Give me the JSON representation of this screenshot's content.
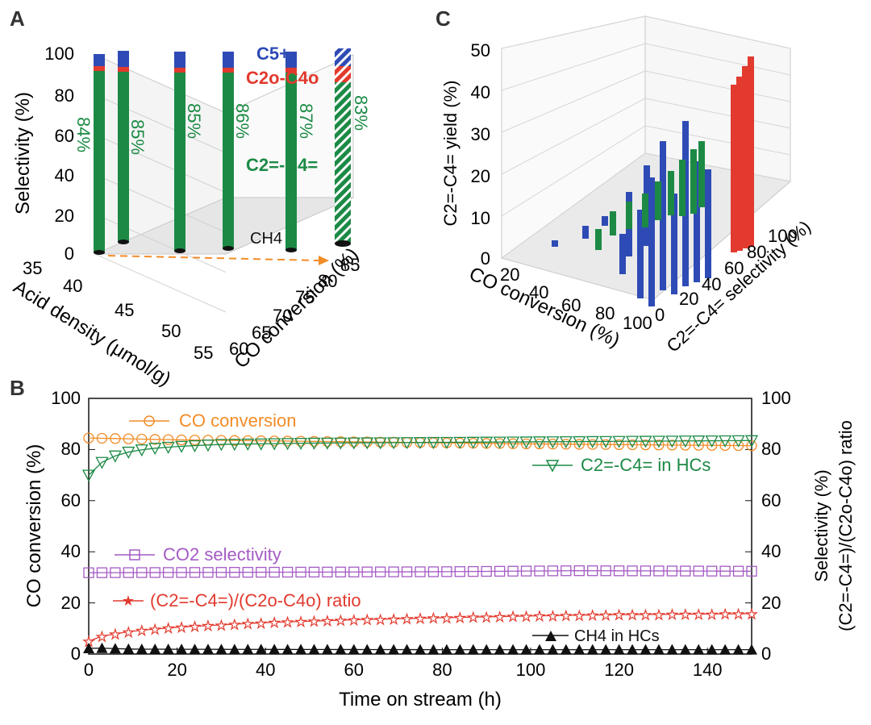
{
  "colors": {
    "green": "#1c8a45",
    "red": "#e23a2e",
    "blue": "#2e4bb5",
    "orange": "#f28c28",
    "purple": "#a45bc4",
    "black": "#111111",
    "grid": "#c8c8c8"
  },
  "panel_labels": {
    "a": "A",
    "b": "B",
    "c": "C"
  },
  "chart_data": [
    {
      "panel": "A",
      "type": "bar",
      "title": "",
      "zlabel": "Selectivity (%)",
      "xlabel": "Acid density (μmol/g)",
      "ylabel": "CO conversion (%)",
      "z_ticks": [
        "0",
        "20",
        "40",
        "60",
        "80",
        "100"
      ],
      "x_ticks": [
        "35",
        "40",
        "45",
        "50",
        "55"
      ],
      "y_ticks": [
        "60",
        "65",
        "70",
        "75",
        "80",
        "85"
      ],
      "zlim": [
        0,
        100
      ],
      "legend": {
        "c5": "C5+",
        "paraffin": "C2o-C4o",
        "olefin": "C2=-C4=",
        "ch4": "CH4"
      },
      "bars": [
        {
          "acid_density": 35,
          "co_conversion": 63,
          "olefin": 84,
          "label": "84%"
        },
        {
          "acid_density": 37,
          "co_conversion": 66,
          "olefin": 85,
          "label": "85%"
        },
        {
          "acid_density": 42,
          "co_conversion": 70,
          "olefin": 85,
          "label": "85%"
        },
        {
          "acid_density": 48,
          "co_conversion": 75,
          "olefin": 86,
          "label": "86%"
        },
        {
          "acid_density": 53,
          "co_conversion": 79,
          "olefin": 87,
          "label": "87%"
        },
        {
          "acid_density": 56,
          "co_conversion": 84,
          "olefin": 83,
          "label": "83%"
        }
      ]
    },
    {
      "panel": "C",
      "type": "bar",
      "title": "",
      "zlabel": "C2=-C4= yield (%)",
      "xlabel": "CO conversion (%)",
      "ylabel": "C2=-C4= selectivity (%)",
      "z_ticks": [
        "0",
        "10",
        "20",
        "30",
        "40",
        "50"
      ],
      "x_ticks": [
        "20",
        "40",
        "60",
        "80",
        "100"
      ],
      "y_ticks": [
        "0",
        "20",
        "40",
        "60",
        "80",
        "100"
      ],
      "zlim": [
        0,
        50
      ],
      "series": [
        {
          "name": "blue",
          "values": [
            1,
            2,
            3,
            6,
            8,
            12,
            20,
            28,
            33,
            22,
            10,
            18,
            25
          ]
        },
        {
          "name": "green",
          "values": [
            5,
            9,
            12,
            15,
            18,
            20,
            24,
            27,
            29
          ]
        },
        {
          "name": "red",
          "values": [
            40,
            43,
            46,
            48
          ]
        }
      ]
    },
    {
      "panel": "B",
      "type": "line",
      "title": "",
      "xlabel": "Time on stream (h)",
      "ylabel": "CO conversion (%)",
      "ylabel_right_1": "Selectivity (%)",
      "ylabel_right_2": "(C2=-C4=)/(C2o-C4o) ratio",
      "xlim": [
        0,
        150
      ],
      "ylim": [
        0,
        100
      ],
      "x_ticks": [
        "0",
        "20",
        "40",
        "60",
        "80",
        "100",
        "120",
        "140"
      ],
      "y_ticks": [
        "0",
        "20",
        "40",
        "60",
        "80",
        "100"
      ],
      "series": [
        {
          "name": "CO conversion",
          "color": "orange",
          "marker": "circle-dot",
          "x": [
            0,
            20,
            40,
            60,
            80,
            100,
            120,
            150
          ],
          "y": [
            84.5,
            83.8,
            83.4,
            83.0,
            82.6,
            82.2,
            81.9,
            81.5
          ]
        },
        {
          "name": "C2=-C4= in HCs",
          "color": "green",
          "marker": "triangle-down",
          "x": [
            0,
            3,
            6,
            10,
            15,
            20,
            30,
            50,
            80,
            100,
            150
          ],
          "y": [
            70,
            75,
            77.5,
            79.5,
            80.5,
            81.2,
            82,
            82.5,
            82.8,
            83,
            83.5
          ]
        },
        {
          "name": "CO2 selectivity",
          "color": "purple",
          "marker": "square-plus",
          "x": [
            0,
            40,
            80,
            110,
            150
          ],
          "y": [
            31.8,
            32,
            32.2,
            32.6,
            32.4
          ]
        },
        {
          "name": "(C2=-C4=)/(C2o-C4o) ratio",
          "color": "red",
          "marker": "star",
          "x": [
            0,
            3,
            10,
            20,
            40,
            60,
            80,
            100,
            120,
            150
          ],
          "y": [
            5,
            7,
            9,
            10.5,
            12.3,
            13.4,
            14.2,
            14.9,
            15.4,
            15.8
          ]
        },
        {
          "name": "CH4 in HCs",
          "color": "black",
          "marker": "triangle-up",
          "x": [
            0,
            3,
            10,
            40,
            80,
            150
          ],
          "y": [
            2.2,
            2.3,
            1.9,
            1.8,
            1.7,
            1.7
          ]
        }
      ],
      "legend_text": {
        "co_conversion": "CO conversion",
        "olefin": "C2=-C4= in HCs",
        "co2": "CO2 selectivity",
        "ratio": "(C2=-C4=)/(C2o-C4o) ratio",
        "ch4": "CH4 in HCs"
      }
    }
  ]
}
